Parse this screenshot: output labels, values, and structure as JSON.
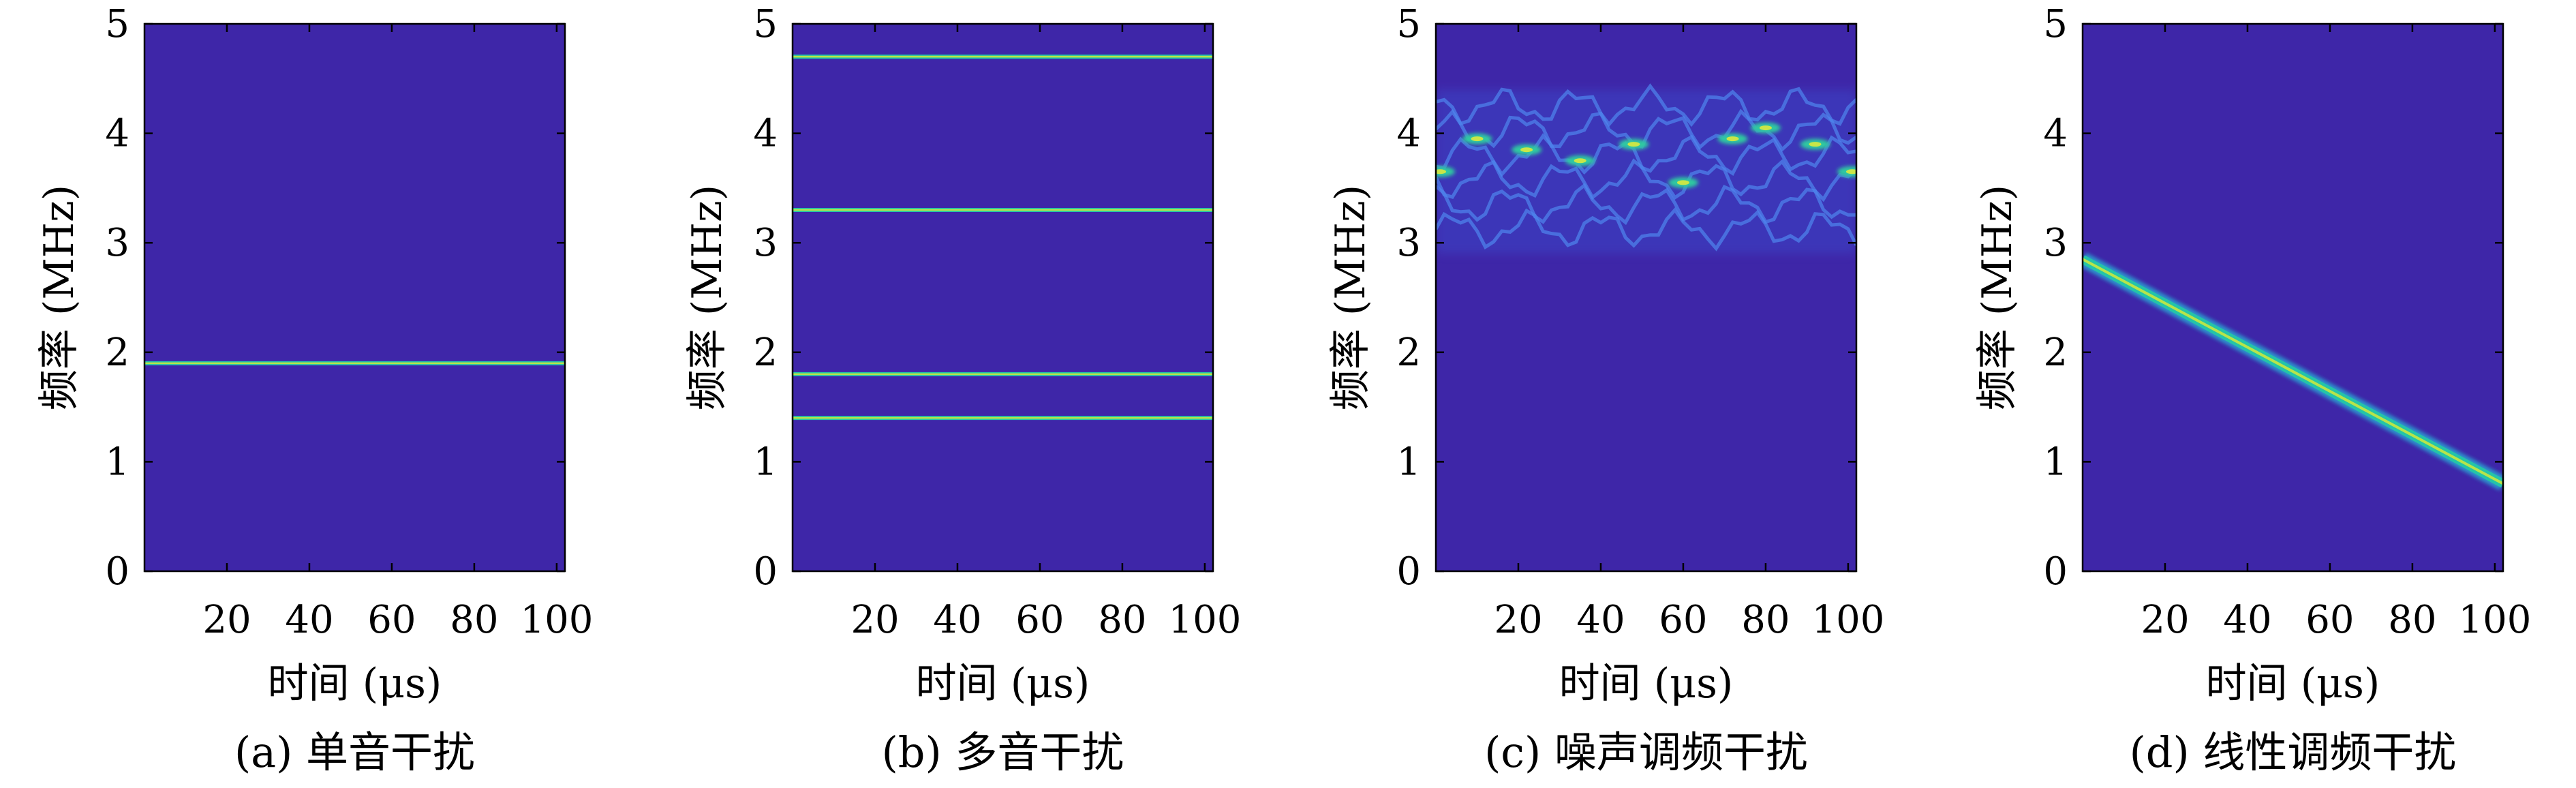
{
  "chart_data": [
    {
      "type": "heatmap",
      "caption": "(a) 单音干扰",
      "xlabel": "时间 (μs)",
      "ylabel": "频率 (MHz)",
      "xlim": [
        0,
        102
      ],
      "ylim": [
        0,
        5
      ],
      "xticks": [
        20,
        40,
        60,
        80,
        100
      ],
      "yticks": [
        0,
        1,
        2,
        3,
        4,
        5
      ],
      "background_color": "#3e26a8",
      "lines": [
        {
          "x": [
            0,
            102
          ],
          "y": [
            1.9,
            1.9
          ]
        }
      ]
    },
    {
      "type": "heatmap",
      "caption": "(b) 多音干扰",
      "xlabel": "时间 (μs)",
      "ylabel": "频率 (MHz)",
      "xlim": [
        0,
        102
      ],
      "ylim": [
        0,
        5
      ],
      "xticks": [
        20,
        40,
        60,
        80,
        100
      ],
      "yticks": [
        0,
        1,
        2,
        3,
        4,
        5
      ],
      "background_color": "#3e26a8",
      "lines": [
        {
          "x": [
            0,
            102
          ],
          "y": [
            4.7,
            4.7
          ]
        },
        {
          "x": [
            0,
            102
          ],
          "y": [
            3.3,
            3.3
          ]
        },
        {
          "x": [
            0,
            102
          ],
          "y": [
            1.8,
            1.8
          ]
        },
        {
          "x": [
            0,
            102
          ],
          "y": [
            1.4,
            1.4
          ]
        }
      ]
    },
    {
      "type": "heatmap",
      "caption": "(c) 噪声调频干扰",
      "xlabel": "时间 (μs)",
      "ylabel": "频率 (MHz)",
      "xlim": [
        0,
        102
      ],
      "ylim": [
        0,
        5
      ],
      "xticks": [
        20,
        40,
        60,
        80,
        100
      ],
      "yticks": [
        0,
        1,
        2,
        3,
        4,
        5
      ],
      "background_color": "#3e26a8",
      "band": {
        "y_min": 2.9,
        "y_max": 4.4,
        "center": 3.7
      },
      "hotspots": [
        {
          "x": 1,
          "y": 3.65
        },
        {
          "x": 10,
          "y": 3.95
        },
        {
          "x": 22,
          "y": 3.85
        },
        {
          "x": 35,
          "y": 3.75
        },
        {
          "x": 48,
          "y": 3.9
        },
        {
          "x": 60,
          "y": 3.55
        },
        {
          "x": 72,
          "y": 3.95
        },
        {
          "x": 80,
          "y": 4.05
        },
        {
          "x": 92,
          "y": 3.9
        },
        {
          "x": 101,
          "y": 3.65
        }
      ]
    },
    {
      "type": "heatmap",
      "caption": "(d) 线性调频干扰",
      "xlabel": "时间 (μs)",
      "ylabel": "频率 (MHz)",
      "xlim": [
        0,
        102
      ],
      "ylim": [
        0,
        5
      ],
      "xticks": [
        20,
        40,
        60,
        80,
        100
      ],
      "yticks": [
        0,
        1,
        2,
        3,
        4,
        5
      ],
      "background_color": "#3e26a8",
      "lines": [
        {
          "x": [
            0,
            102
          ],
          "y": [
            2.85,
            0.8
          ]
        }
      ]
    }
  ]
}
